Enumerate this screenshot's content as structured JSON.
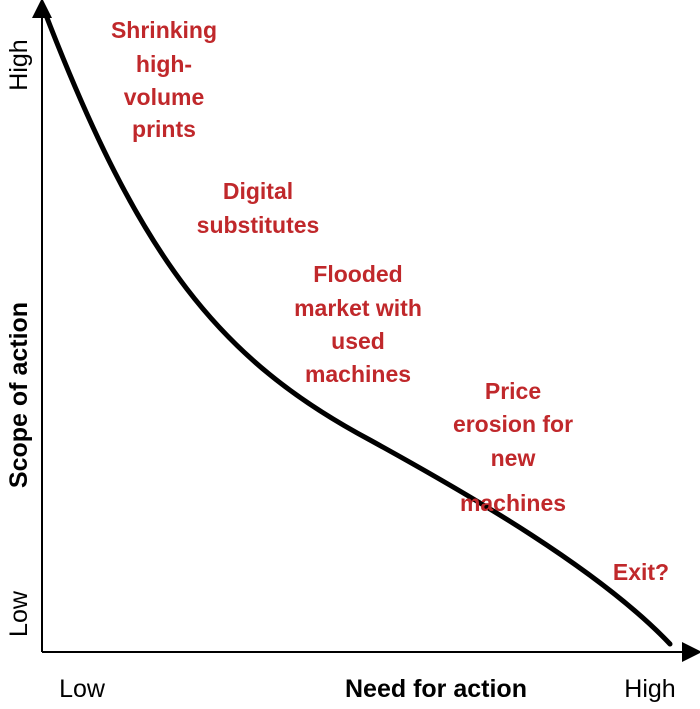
{
  "diagram": {
    "y_axis": {
      "title": "Scope of action",
      "low": "Low",
      "high": "High"
    },
    "x_axis": {
      "title": "Need for action",
      "low": "Low",
      "high": "High"
    },
    "curve": {
      "color": "#000000"
    },
    "label_color": "#c0282b",
    "stages": [
      {
        "lines": [
          "Shrinking",
          "high-",
          "volume",
          "prints"
        ]
      },
      {
        "lines": [
          "Digital",
          "substitutes"
        ]
      },
      {
        "lines": [
          "Flooded",
          "market with",
          "used",
          "machines"
        ]
      },
      {
        "lines": [
          "Price",
          "erosion for",
          "new",
          "machines"
        ]
      },
      {
        "lines": [
          "Exit?"
        ]
      }
    ]
  }
}
